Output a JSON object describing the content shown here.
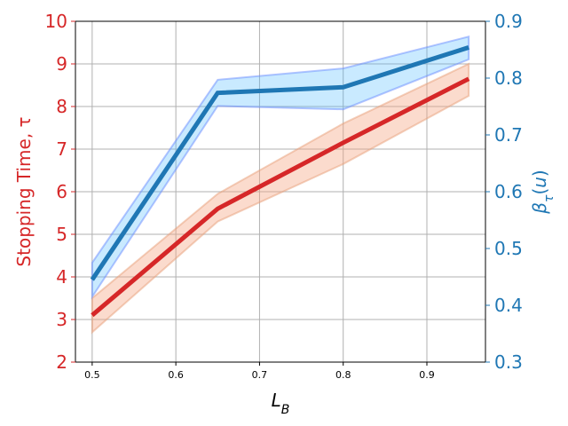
{
  "chart_data": {
    "type": "line",
    "title": "",
    "x": [
      0.5,
      0.65,
      0.8,
      0.95
    ],
    "xlabel": "L_B",
    "xlim": [
      0.48,
      0.97
    ],
    "xticks": [
      "0.5",
      "0.6",
      "0.7",
      "0.8",
      "0.9"
    ],
    "xtick_values": [
      0.5,
      0.6,
      0.7,
      0.8,
      0.9
    ],
    "grid": true,
    "left_axis": {
      "label": "Stopping Time, τ",
      "ylim": [
        2,
        10
      ],
      "ticks": [
        "2",
        "3",
        "4",
        "5",
        "6",
        "7",
        "8",
        "9",
        "10"
      ],
      "tick_values": [
        2,
        3,
        4,
        5,
        6,
        7,
        8,
        9,
        10
      ],
      "color": "#d62728"
    },
    "right_axis": {
      "label": "β_τ(u)",
      "ylim": [
        0.3,
        0.9
      ],
      "ticks": [
        "0.3",
        "0.4",
        "0.5",
        "0.6",
        "0.7",
        "0.8",
        "0.9"
      ],
      "tick_values": [
        0.3,
        0.4,
        0.5,
        0.6,
        0.7,
        0.8,
        0.9
      ],
      "color": "#1f77b4"
    },
    "series": [
      {
        "axis": "left",
        "values": [
          3.1,
          5.6,
          7.15,
          8.65
        ],
        "lower": [
          2.7,
          5.3,
          6.65,
          8.25
        ],
        "upper": [
          3.5,
          5.95,
          7.6,
          9.0
        ],
        "line_color": "#d62728",
        "band_color": "#f4a582"
      },
      {
        "axis": "right",
        "values": [
          0.445,
          0.774,
          0.784,
          0.854
        ],
        "lower": [
          0.415,
          0.751,
          0.745,
          0.833
        ],
        "upper": [
          0.475,
          0.797,
          0.817,
          0.873
        ],
        "line_color": "#1f77b4",
        "band_color": "#4db8ff"
      }
    ]
  }
}
